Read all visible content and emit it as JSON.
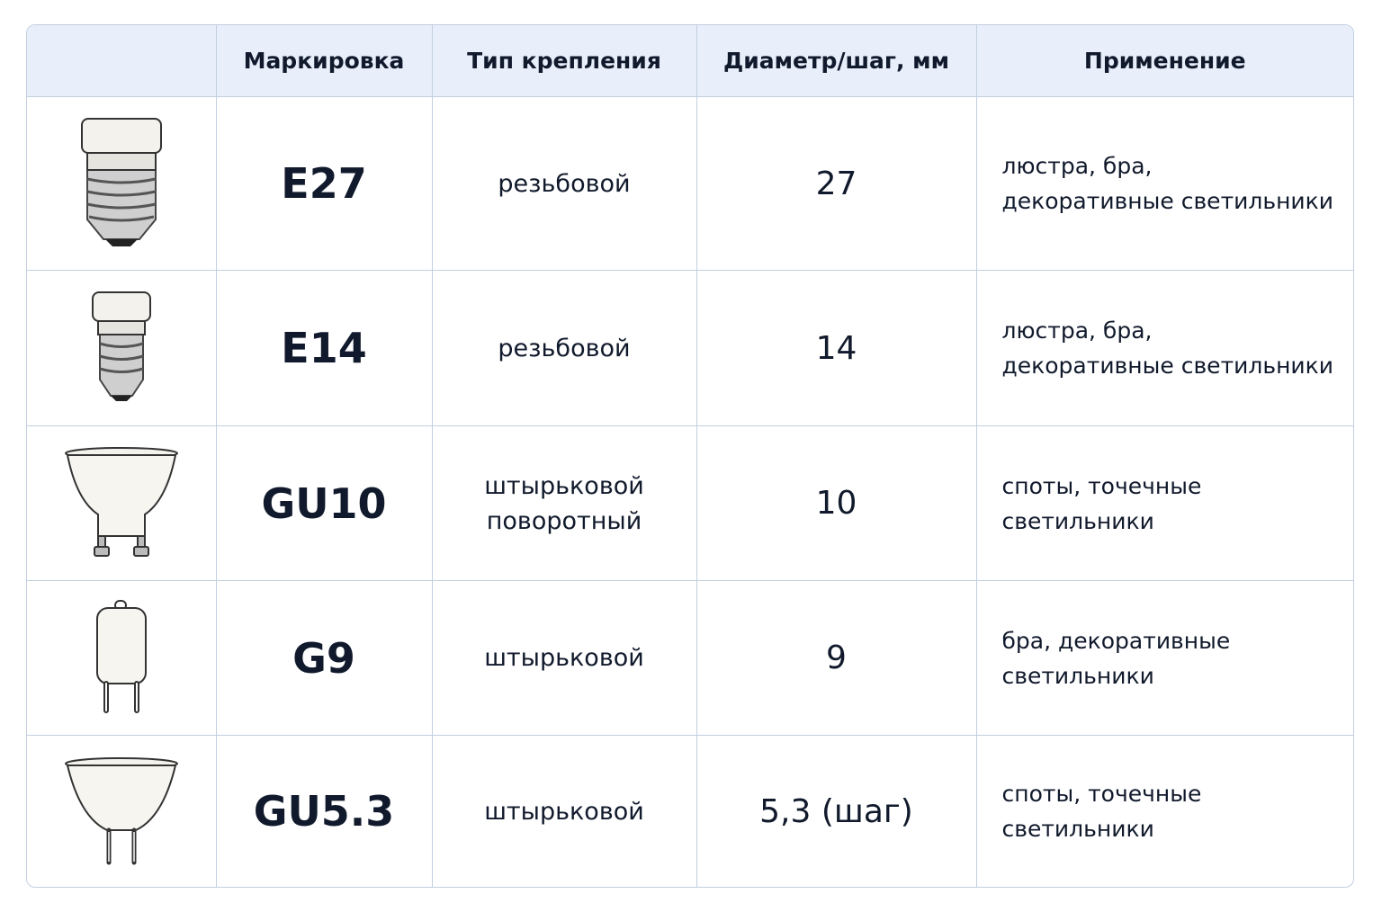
{
  "header": {
    "columns": [
      "Маркировка",
      "Тип крепления",
      "Диаметр/шаг, мм",
      "Применение"
    ]
  },
  "rows": [
    {
      "mark": "E27",
      "mount": [
        "резьбовой"
      ],
      "diameter": "27",
      "application": [
        "люстра, бра,",
        "декоративные светильники"
      ]
    },
    {
      "mark": "E14",
      "mount": [
        "резьбовой"
      ],
      "diameter": "14",
      "application": [
        "люстра, бра,",
        "декоративные светильники"
      ]
    },
    {
      "mark": "GU10",
      "mount": [
        "штырьковой",
        "поворотный"
      ],
      "diameter": "10",
      "application": [
        "споты, точечные",
        "светильники"
      ]
    },
    {
      "mark": "G9",
      "mount": [
        "штырьковой"
      ],
      "diameter": "9",
      "application": [
        "бра, декоративные",
        "светильники"
      ]
    },
    {
      "mark": "GU5.3",
      "mount": [
        "штырьковой"
      ],
      "diameter": "5,3 (шаг)",
      "application": [
        "споты, точечные",
        "светильники"
      ]
    }
  ]
}
